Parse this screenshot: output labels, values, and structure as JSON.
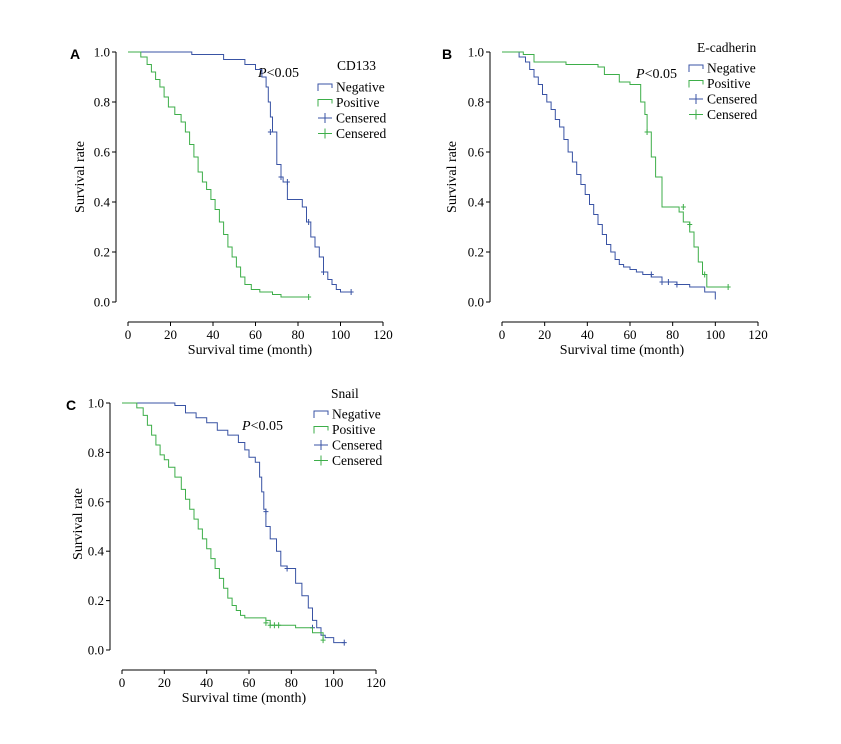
{
  "colors": {
    "negative": "#3953a4",
    "positive": "#3dae49"
  },
  "chart_data": [
    {
      "type": "line",
      "panel": "A",
      "xlabel": "Survival time (month)",
      "ylabel": "Survival rate",
      "xlim": [
        0,
        120
      ],
      "ylim": [
        0,
        1
      ],
      "x_ticks": [
        "0",
        "20",
        "40",
        "60",
        "80",
        "100",
        "120"
      ],
      "y_ticks": [
        "0.0",
        "0.2",
        "0.4",
        "0.6",
        "0.8",
        "1.0"
      ],
      "p_value": "P<0.05",
      "legend_title": "CD133",
      "legend_position": "top-right",
      "legend": [
        "Negative",
        "Positive",
        "Censered",
        "Censered"
      ],
      "series": [
        {
          "name": "Negative",
          "x": [
            0,
            30,
            45,
            55,
            60,
            63,
            65,
            66,
            67,
            68,
            70,
            72,
            73,
            75,
            82,
            84,
            86,
            88,
            90,
            92,
            94,
            96,
            98,
            100,
            105
          ],
          "y": [
            1.0,
            0.99,
            0.97,
            0.95,
            0.93,
            0.9,
            0.86,
            0.8,
            0.74,
            0.68,
            0.55,
            0.5,
            0.48,
            0.41,
            0.38,
            0.32,
            0.26,
            0.22,
            0.18,
            0.12,
            0.09,
            0.07,
            0.05,
            0.04,
            0.04
          ],
          "censored": [
            [
              67,
              0.68
            ],
            [
              72,
              0.5
            ],
            [
              75,
              0.48
            ],
            [
              85,
              0.32
            ],
            [
              92,
              0.12
            ],
            [
              105,
              0.04
            ]
          ]
        },
        {
          "name": "Positive",
          "x": [
            0,
            6,
            9,
            11,
            13,
            15,
            17,
            19,
            22,
            25,
            27,
            29,
            31,
            33,
            35,
            37,
            39,
            41,
            43,
            45,
            47,
            49,
            51,
            53,
            55,
            58,
            62,
            68,
            72,
            85
          ],
          "y": [
            1.0,
            0.98,
            0.95,
            0.92,
            0.89,
            0.86,
            0.82,
            0.78,
            0.75,
            0.72,
            0.68,
            0.63,
            0.58,
            0.52,
            0.48,
            0.45,
            0.41,
            0.37,
            0.32,
            0.27,
            0.22,
            0.18,
            0.14,
            0.1,
            0.07,
            0.05,
            0.04,
            0.03,
            0.02,
            0.02
          ],
          "censored": [
            [
              85,
              0.02
            ]
          ]
        }
      ]
    },
    {
      "type": "line",
      "panel": "B",
      "xlabel": "Survival time (month)",
      "ylabel": "Survival rate",
      "xlim": [
        0,
        120
      ],
      "ylim": [
        0,
        1
      ],
      "x_ticks": [
        "0",
        "20",
        "40",
        "60",
        "80",
        "100",
        "120"
      ],
      "y_ticks": [
        "0.0",
        "0.2",
        "0.4",
        "0.6",
        "0.8",
        "1.0"
      ],
      "p_value": "P<0.05",
      "legend_title": "E-cadherin",
      "legend_position": "top-right",
      "legend": [
        "Negative",
        "Positive",
        "Censered",
        "Censered"
      ],
      "series": [
        {
          "name": "Negative",
          "x": [
            0,
            8,
            11,
            13,
            15,
            17,
            19,
            21,
            23,
            25,
            27,
            29,
            31,
            33,
            35,
            37,
            39,
            41,
            43,
            45,
            47,
            49,
            51,
            53,
            55,
            57,
            60,
            63,
            66,
            70,
            75,
            82,
            88,
            95,
            100
          ],
          "y": [
            1.0,
            0.98,
            0.96,
            0.93,
            0.9,
            0.87,
            0.83,
            0.8,
            0.77,
            0.73,
            0.7,
            0.65,
            0.6,
            0.56,
            0.51,
            0.47,
            0.43,
            0.39,
            0.35,
            0.31,
            0.27,
            0.23,
            0.2,
            0.17,
            0.15,
            0.14,
            0.13,
            0.12,
            0.11,
            0.1,
            0.08,
            0.07,
            0.06,
            0.04,
            0.01
          ],
          "censored": [
            [
              70,
              0.11
            ],
            [
              75,
              0.08
            ],
            [
              78,
              0.08
            ],
            [
              82,
              0.07
            ]
          ]
        },
        {
          "name": "Positive",
          "x": [
            0,
            10,
            15,
            30,
            45,
            48,
            55,
            60,
            65,
            67,
            68,
            70,
            72,
            75,
            80,
            83,
            85,
            88,
            90,
            92,
            94,
            96,
            106
          ],
          "y": [
            1.0,
            0.99,
            0.96,
            0.95,
            0.94,
            0.91,
            0.88,
            0.87,
            0.8,
            0.75,
            0.68,
            0.58,
            0.5,
            0.38,
            0.38,
            0.36,
            0.32,
            0.28,
            0.22,
            0.16,
            0.11,
            0.06,
            0.06
          ],
          "censored": [
            [
              68,
              0.68
            ],
            [
              85,
              0.38
            ],
            [
              88,
              0.31
            ],
            [
              95,
              0.11
            ],
            [
              106,
              0.06
            ]
          ]
        }
      ]
    },
    {
      "type": "line",
      "panel": "C",
      "xlabel": "Survival time (month)",
      "ylabel": "Survival rate",
      "xlim": [
        0,
        120
      ],
      "ylim": [
        0,
        1
      ],
      "x_ticks": [
        "0",
        "20",
        "40",
        "60",
        "80",
        "100",
        "120"
      ],
      "y_ticks": [
        "0.0",
        "0.2",
        "0.4",
        "0.6",
        "0.8",
        "1.0"
      ],
      "p_value": "P<0.05",
      "legend_title": "Snail",
      "legend_position": "top-right",
      "legend": [
        "Negative",
        "Positive",
        "Censered",
        "Censered"
      ],
      "series": [
        {
          "name": "Negative",
          "x": [
            0,
            25,
            30,
            35,
            40,
            45,
            50,
            55,
            58,
            60,
            63,
            65,
            66,
            67,
            68,
            70,
            73,
            75,
            78,
            82,
            85,
            88,
            90,
            92,
            94,
            96,
            100,
            105
          ],
          "y": [
            1.0,
            0.99,
            0.96,
            0.94,
            0.92,
            0.89,
            0.87,
            0.84,
            0.81,
            0.78,
            0.76,
            0.7,
            0.64,
            0.57,
            0.5,
            0.45,
            0.4,
            0.34,
            0.33,
            0.27,
            0.22,
            0.17,
            0.12,
            0.09,
            0.06,
            0.05,
            0.03,
            0.03
          ],
          "censored": [
            [
              68,
              0.56
            ],
            [
              78,
              0.33
            ],
            [
              90,
              0.09
            ],
            [
              105,
              0.03
            ]
          ]
        },
        {
          "name": "Positive",
          "x": [
            0,
            7,
            10,
            12,
            14,
            16,
            18,
            20,
            22,
            25,
            28,
            30,
            32,
            34,
            36,
            38,
            40,
            42,
            44,
            46,
            48,
            50,
            52,
            54,
            56,
            58,
            62,
            68,
            70,
            75,
            82,
            90,
            95
          ],
          "y": [
            1.0,
            0.98,
            0.95,
            0.91,
            0.87,
            0.83,
            0.79,
            0.77,
            0.74,
            0.7,
            0.65,
            0.61,
            0.57,
            0.53,
            0.49,
            0.45,
            0.41,
            0.37,
            0.33,
            0.29,
            0.25,
            0.21,
            0.18,
            0.16,
            0.14,
            0.13,
            0.13,
            0.12,
            0.1,
            0.1,
            0.09,
            0.07,
            0.04
          ],
          "censored": [
            [
              68,
              0.11
            ],
            [
              70,
              0.1
            ],
            [
              72,
              0.1
            ],
            [
              74,
              0.1
            ],
            [
              95,
              0.04
            ]
          ]
        }
      ]
    }
  ]
}
